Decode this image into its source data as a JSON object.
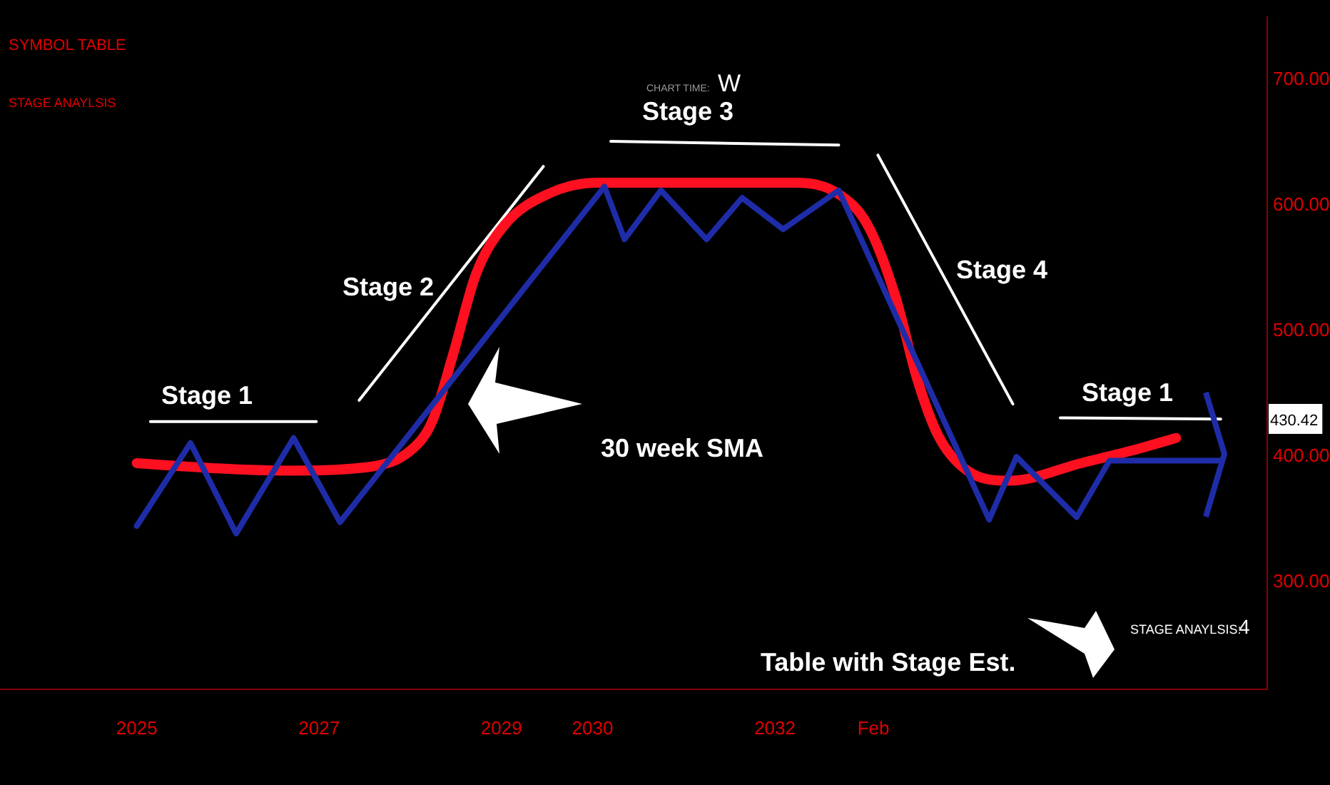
{
  "chart_data": {
    "type": "line",
    "legend": false,
    "grid": false,
    "marker": "none",
    "line_style": "solid",
    "xlim": [
      2023.5,
      2037.4
    ],
    "xticks": [
      2025,
      2027,
      2029,
      2030,
      2032,
      {
        "value": 2033.08,
        "label": "Feb"
      }
    ],
    "ylim": [
      215,
      750
    ],
    "yticks": [
      {
        "value": 300,
        "label": "300.00"
      },
      {
        "value": 400,
        "label": "400.00"
      },
      {
        "value": 500,
        "label": "500.00"
      },
      {
        "value": 600,
        "label": "600.00"
      },
      {
        "value": 700,
        "label": "700.00"
      }
    ],
    "series": [
      {
        "color": "#1f2ca8",
        "x": [
          2025.0,
          2025.59,
          2026.09,
          2026.72,
          2027.23,
          2030.13,
          2030.35,
          2030.75,
          2031.25,
          2031.64,
          2032.09,
          2032.7,
          2034.35,
          2034.65,
          2035.31,
          2035.67,
          2036.89
        ],
        "values": [
          345,
          411,
          339,
          415,
          348,
          615,
          573,
          612,
          573,
          606,
          581,
          612,
          350,
          400,
          352,
          397,
          397
        ]
      },
      {
        "color": "#ff1020",
        "x": [
          2025.0,
          2025.83,
          2026.61,
          2027.55,
          2028.02,
          2028.24,
          2028.48,
          2028.72,
          2029.03,
          2029.51,
          2030.05,
          2030.98,
          2032.23,
          2032.7,
          2033.02,
          2033.32,
          2033.56,
          2033.79,
          2034.11,
          2034.58,
          2035.36,
          2035.97,
          2036.4
        ],
        "values": [
          395,
          391,
          389,
          392,
          406,
          428,
          484,
          545,
          584,
          609,
          618,
          618,
          618,
          609,
          584,
          528,
          462,
          417,
          389,
          381,
          395,
          406,
          415
        ]
      },
      {
        "color": "#ffffff",
        "x": [
          2025.15,
          2026.97
        ],
        "values": [
          428,
          428
        ]
      },
      {
        "color": "#ffffff",
        "x": [
          2027.44,
          2029.46
        ],
        "values": [
          445,
          631
        ]
      },
      {
        "color": "#ffffff",
        "x": [
          2030.2,
          2032.7
        ],
        "values": [
          651,
          648
        ]
      },
      {
        "color": "#ffffff",
        "x": [
          2033.13,
          2034.61
        ],
        "values": [
          640,
          442
        ]
      },
      {
        "color": "#ffffff",
        "x": [
          2035.13,
          2036.89
        ],
        "values": [
          431,
          430
        ]
      }
    ],
    "annotations": [
      "SYMBOL TABLE",
      "STAGE ANAYLSIS",
      "CHART TIME:",
      "W",
      "Table with Stage Est.",
      "STAGE ANAYLSIS:",
      "4",
      "Stage 1",
      "Stage 2",
      "Stage 3",
      "Stage 4",
      "Stage 1",
      "30 week SMA",
      "430.42"
    ]
  }
}
